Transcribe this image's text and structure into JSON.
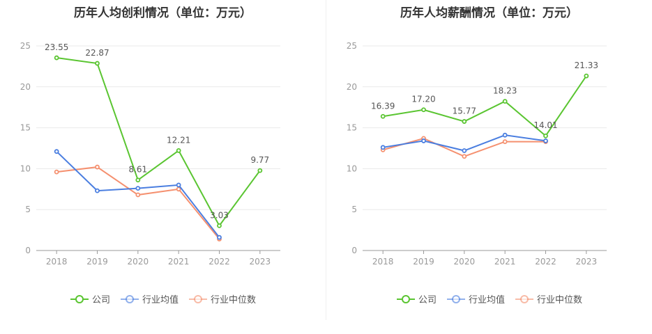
{
  "colors": {
    "company": "#5ac531",
    "industry_avg": "#4a7ee0",
    "industry_median": "#f5906f"
  },
  "chart_data": [
    {
      "type": "line",
      "title": "历年人均创利情况（单位：万元）",
      "categories": [
        "2018",
        "2019",
        "2020",
        "2021",
        "2022",
        "2023"
      ],
      "ylim": [
        0,
        25
      ],
      "yticks": [
        "0",
        "5",
        "10",
        "15",
        "20",
        "25"
      ],
      "grid": true,
      "legend_placement": "bottom-center",
      "series": [
        {
          "name": "公司",
          "key": "company",
          "values": [
            23.55,
            22.87,
            8.61,
            12.21,
            3.03,
            9.77
          ],
          "labels": [
            "23.55",
            "22.87",
            "8.61",
            "12.21",
            "3.03",
            "9.77"
          ]
        },
        {
          "name": "行业均值",
          "key": "industry_avg",
          "values": [
            12.1,
            7.3,
            7.6,
            8.0,
            1.6,
            null
          ]
        },
        {
          "name": "行业中位数",
          "key": "industry_median",
          "values": [
            9.6,
            10.2,
            6.8,
            7.5,
            1.4,
            null
          ]
        }
      ]
    },
    {
      "type": "line",
      "title": "历年人均薪酬情况（单位：万元）",
      "categories": [
        "2018",
        "2019",
        "2020",
        "2021",
        "2022",
        "2023"
      ],
      "ylim": [
        0,
        25
      ],
      "yticks": [
        "0",
        "5",
        "10",
        "15",
        "20",
        "25"
      ],
      "grid": true,
      "legend_placement": "bottom-center",
      "series": [
        {
          "name": "公司",
          "key": "company",
          "values": [
            16.39,
            17.2,
            15.77,
            18.23,
            14.01,
            21.33
          ],
          "labels": [
            "16.39",
            "17.20",
            "15.77",
            "18.23",
            "14.01",
            "21.33"
          ]
        },
        {
          "name": "行业均值",
          "key": "industry_avg",
          "values": [
            12.6,
            13.4,
            12.2,
            14.1,
            13.4,
            null
          ]
        },
        {
          "name": "行业中位数",
          "key": "industry_median",
          "values": [
            12.3,
            13.7,
            11.5,
            13.3,
            13.3,
            null
          ]
        }
      ]
    }
  ]
}
